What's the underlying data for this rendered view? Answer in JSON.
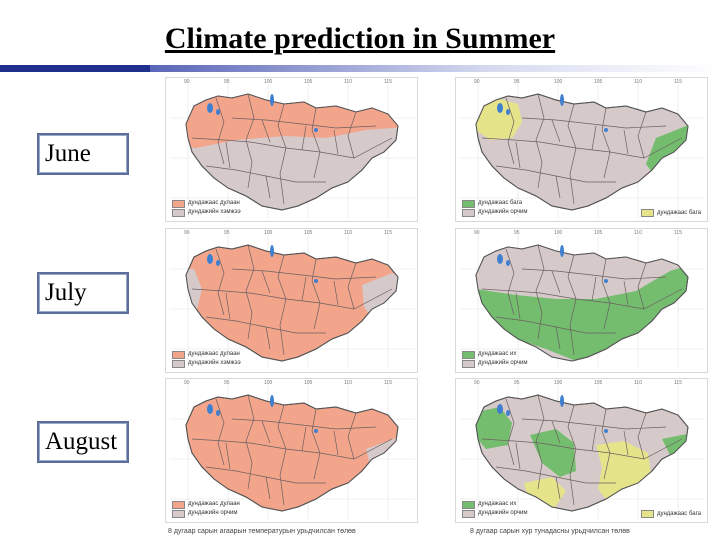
{
  "title": "Climate prediction in Summer",
  "months": [
    "June",
    "July",
    "August"
  ],
  "colors": {
    "orange": "#f3a58c",
    "grey": "#d6c9c9",
    "green": "#74bd6f",
    "yellow": "#e6e48a",
    "lake": "#3f7fd0",
    "accent": "#1f2f8c"
  },
  "panels": {
    "june_temp": {
      "legend": [
        "дундажаас дулаан",
        "дундажийн хэмжээ"
      ],
      "extra": ""
    },
    "june_prec": {
      "legend": [
        "дундажаас бага",
        "дундажийн орчим"
      ],
      "extra": "дундажаас бага"
    },
    "july_temp": {
      "legend": [
        "дундажаас дулаан",
        "дундажийн хэмжээ"
      ],
      "extra": ""
    },
    "july_prec": {
      "legend": [
        "дундажаас их",
        "дундажийн орчим"
      ],
      "extra": ""
    },
    "aug_temp": {
      "legend": [
        "дундажаас дулаан",
        "дундажийн орчим"
      ],
      "extra": ""
    },
    "aug_prec": {
      "legend": [
        "дундажаас их",
        "дундажийн орчим"
      ],
      "extra": "дундажаас бага"
    }
  },
  "captions": {
    "left": "8 дугаар сарын агаарын температурын урьдчилсан төлөв",
    "right": "8 дугаар сарын хур тунадасны урьдчилсан төлөв"
  },
  "ticks": [
    "90",
    "95",
    "100",
    "105",
    "110",
    "115"
  ]
}
